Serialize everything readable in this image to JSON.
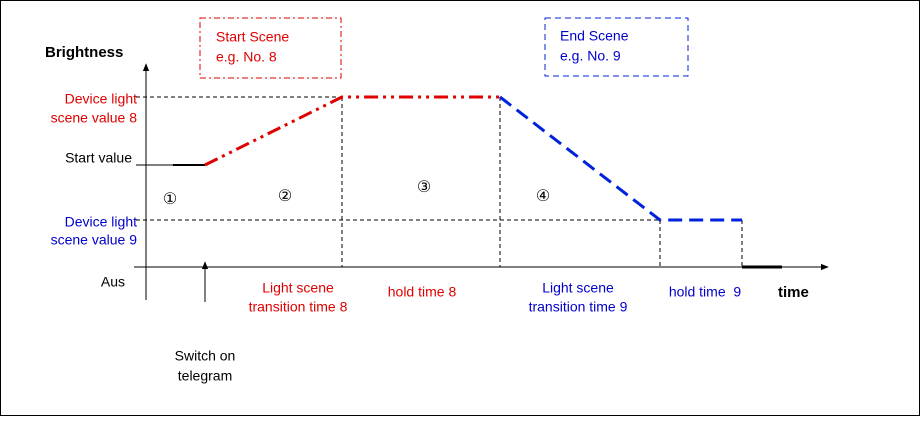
{
  "y_axis_label": "Brightness",
  "start_scene_box": {
    "lines": [
      "Start Scene",
      "e.g. No. 8"
    ]
  },
  "end_scene_box": {
    "lines": [
      "End Scene",
      "e.g. No. 9"
    ]
  },
  "levels": {
    "scene_value_8": [
      "Device light",
      "scene value 8"
    ],
    "start_value": "Start value",
    "scene_value_9": [
      "Device light",
      "scene value 9"
    ],
    "off": "Aus"
  },
  "phases": [
    "①",
    "②",
    "③",
    "④"
  ],
  "time_labels": {
    "transition_8": [
      "Light scene",
      "transition time 8"
    ],
    "hold_8": "hold time 8",
    "transition_9": [
      "Light scene",
      "transition time 9"
    ],
    "hold_9": "hold time  9"
  },
  "x_axis_label": "time",
  "trigger": [
    "Switch on",
    "telegram"
  ]
}
